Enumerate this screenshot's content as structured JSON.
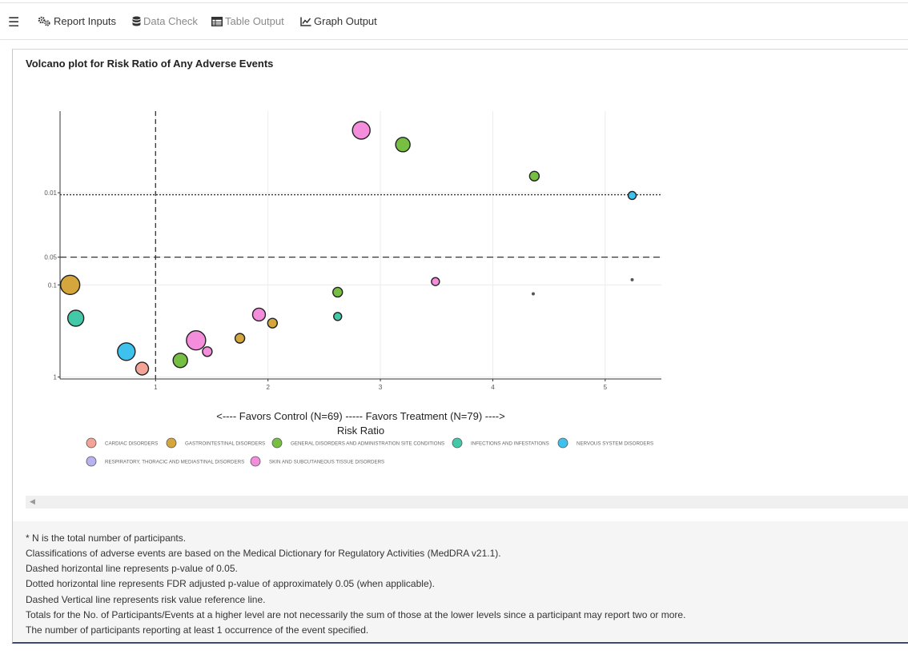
{
  "nav": {
    "menu_icon": "hamburger-icon",
    "tabs": [
      {
        "label": "Report Inputs",
        "icon": "gears-icon",
        "active": true
      },
      {
        "label": "Data Check",
        "icon": "database-icon",
        "active": false
      },
      {
        "label": "Table Output",
        "icon": "table-icon",
        "active": false
      },
      {
        "label": "Graph Output",
        "icon": "line-chart-icon",
        "active": true
      }
    ]
  },
  "card": {
    "title": "Volcano plot for Risk Ratio of Any Adverse Events"
  },
  "chart_data": {
    "type": "scatter",
    "xlabel_line1": "<---- Favors Control (N=69)  -----  Favors Treatment (N=79) ---->",
    "xlabel_line2": "Risk Ratio",
    "x_ticks": [
      1,
      2,
      3,
      4,
      5
    ],
    "y_ticks": [
      "0.01",
      "0.05",
      "0.1",
      "1"
    ],
    "y_scale": "log reversed",
    "xlim": [
      0.15,
      5.5
    ],
    "ylim": [
      1.05,
      0.0013
    ],
    "reference_lines": {
      "vertical_x": 1,
      "dashed_p": 0.05,
      "dotted_fdr_p": 0.0105
    },
    "legend_placement": "bottom",
    "colors": {
      "CARDIAC DISORDERS": "#f4a497",
      "GASTROINTESTINAL DISORDERS": "#d4a63b",
      "GENERAL DISORDERS AND ADMINISTRATION SITE CONDITIONS": "#76bf42",
      "INFECTIONS AND INFESTATIONS": "#43c9a8",
      "NERVOUS SYSTEM DISORDERS": "#3fc1ee",
      "RESPIRATORY, THORACIC AND MEDIASTINAL DISORDERS": "#b8b2f0",
      "SKIN AND SUBCUTANEOUS TISSUE DISORDERS": "#f48ddc"
    },
    "legend": [
      "CARDIAC DISORDERS",
      "GASTROINTESTINAL DISORDERS",
      "GENERAL DISORDERS AND ADMINISTRATION SITE CONDITIONS",
      "INFECTIONS AND INFESTATIONS",
      "NERVOUS SYSTEM DISORDERS",
      "RESPIRATORY, THORACIC AND MEDIASTINAL DISORDERS",
      "SKIN AND SUBCUTANEOUS TISSUE DISORDERS"
    ],
    "points": [
      {
        "soc": "SKIN AND SUBCUTANEOUS TISSUE DISORDERS",
        "x": 2.83,
        "p": 0.0021,
        "size": 11
      },
      {
        "soc": "GENERAL DISORDERS AND ADMINISTRATION SITE CONDITIONS",
        "x": 3.2,
        "p": 0.003,
        "size": 9
      },
      {
        "soc": "GENERAL DISORDERS AND ADMINISTRATION SITE CONDITIONS",
        "x": 4.37,
        "p": 0.0066,
        "size": 6
      },
      {
        "soc": "NERVOUS SYSTEM DISORDERS",
        "x": 5.24,
        "p": 0.0107,
        "size": 5
      },
      {
        "soc": "GASTROINTESTINAL DISORDERS",
        "x": 0.24,
        "p": 0.1,
        "size": 12
      },
      {
        "soc": "SKIN AND SUBCUTANEOUS TISSUE DISORDERS",
        "x": 3.49,
        "p": 0.092,
        "size": 5
      },
      {
        "soc": "GENERAL DISORDERS AND ADMINISTRATION SITE CONDITIONS",
        "x": 2.62,
        "p": 0.12,
        "size": 6
      },
      {
        "soc": "INFECTIONS AND INFESTATIONS",
        "x": 0.29,
        "p": 0.23,
        "size": 10
      },
      {
        "soc": "SKIN AND SUBCUTANEOUS TISSUE DISORDERS",
        "x": 1.92,
        "p": 0.21,
        "size": 8
      },
      {
        "soc": "INFECTIONS AND INFESTATIONS",
        "x": 2.62,
        "p": 0.22,
        "size": 5
      },
      {
        "soc": "GASTROINTESTINAL DISORDERS",
        "x": 2.04,
        "p": 0.26,
        "size": 6
      },
      {
        "soc": "GASTROINTESTINAL DISORDERS",
        "x": 1.75,
        "p": 0.38,
        "size": 6
      },
      {
        "soc": "SKIN AND SUBCUTANEOUS TISSUE DISORDERS",
        "x": 1.36,
        "p": 0.4,
        "size": 12
      },
      {
        "soc": "NERVOUS SYSTEM DISORDERS",
        "x": 0.74,
        "p": 0.53,
        "size": 11
      },
      {
        "soc": "SKIN AND SUBCUTANEOUS TISSUE DISORDERS",
        "x": 1.46,
        "p": 0.53,
        "size": 6
      },
      {
        "soc": "GENERAL DISORDERS AND ADMINISTRATION SITE CONDITIONS",
        "x": 1.22,
        "p": 0.66,
        "size": 9
      },
      {
        "soc": "CARDIAC DISORDERS",
        "x": 0.88,
        "p": 0.81,
        "size": 8
      },
      {
        "soc": "",
        "x": 4.36,
        "p": 0.125,
        "size": 2
      },
      {
        "soc": "",
        "x": 5.24,
        "p": 0.088,
        "size": 2
      }
    ]
  },
  "notes": [
    "* N is the total number of participants.",
    "Classifications of adverse events are based on the Medical Dictionary for Regulatory Activities (MedDRA v21.1).",
    "Dashed horizontal line represents p-value of 0.05.",
    "Dotted horizontal line represents FDR adjusted p-value of approximately 0.05 (when applicable).",
    "Dashed Vertical line represents risk value reference line.",
    "Totals for the No. of Participants/Events at a higher level are not necessarily the sum of those at the lower levels since a participant may report two or more.",
    "The number of participants reporting at least 1 occurrence of the event specified."
  ]
}
